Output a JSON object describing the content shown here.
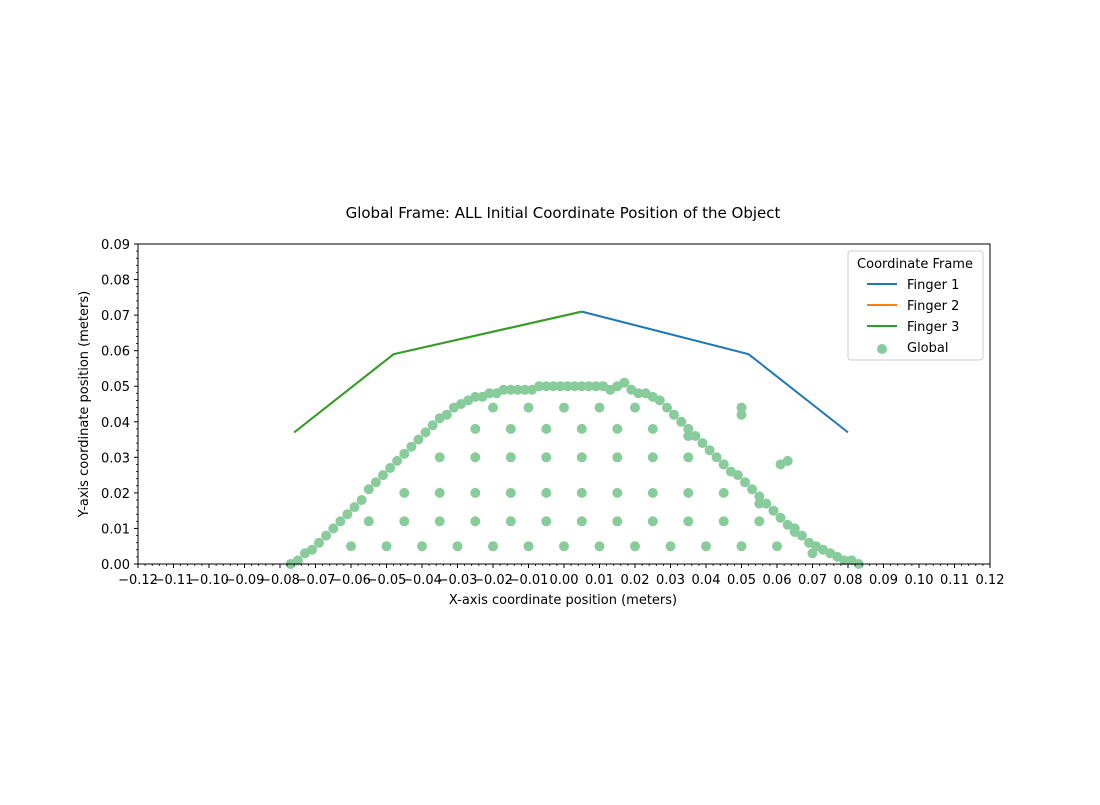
{
  "chart_data": {
    "type": "scatter",
    "title": "Global Frame: ALL Initial Coordinate Position of the Object",
    "xlabel": "X-axis coordinate position (meters)",
    "ylabel": "Y-axis coordinate position (meters)",
    "xlim": [
      -0.12,
      0.12
    ],
    "ylim": [
      0.0,
      0.09
    ],
    "grid": false,
    "legend": {
      "title": "Coordinate Frame",
      "placement": "top-right"
    },
    "x_ticks": [
      "−0.12",
      "−0.11",
      "−0.10",
      "−0.09",
      "−0.08",
      "−0.07",
      "−0.06",
      "−0.05",
      "−0.04",
      "−0.03",
      "−0.02",
      "−0.01",
      "0.00",
      "0.01",
      "0.02",
      "0.03",
      "0.04",
      "0.05",
      "0.06",
      "0.07",
      "0.08",
      "0.09",
      "0.10",
      "0.11",
      "0.12"
    ],
    "y_ticks": [
      "0.00",
      "0.01",
      "0.02",
      "0.03",
      "0.04",
      "0.05",
      "0.06",
      "0.07",
      "0.08",
      "0.09"
    ],
    "series": [
      {
        "name": "Finger 1",
        "kind": "line",
        "color": "#1f77b4",
        "x": [
          0.005,
          0.052,
          0.08
        ],
        "y": [
          0.071,
          0.059,
          0.037
        ]
      },
      {
        "name": "Finger 2",
        "kind": "line",
        "color": "#ff7f0e",
        "x": [
          -0.076,
          -0.048,
          0.005
        ],
        "y": [
          0.037,
          0.059,
          0.071
        ]
      },
      {
        "name": "Finger 3",
        "kind": "line",
        "color": "#2ca02c",
        "x": [
          -0.076,
          -0.048,
          0.005
        ],
        "y": [
          0.037,
          0.059,
          0.071
        ]
      },
      {
        "name": "Global",
        "kind": "scatter",
        "color": "#88cc9c",
        "x": [
          -0.077,
          -0.075,
          -0.073,
          -0.071,
          -0.069,
          -0.067,
          -0.065,
          -0.063,
          -0.061,
          -0.059,
          -0.057,
          -0.055,
          -0.053,
          -0.051,
          -0.049,
          -0.047,
          -0.045,
          -0.043,
          -0.041,
          -0.039,
          -0.037,
          -0.035,
          -0.033,
          -0.031,
          -0.029,
          -0.027,
          -0.025,
          -0.023,
          -0.021,
          -0.019,
          -0.017,
          -0.015,
          -0.013,
          -0.011,
          -0.009,
          -0.007,
          -0.005,
          -0.003,
          -0.001,
          0.001,
          0.003,
          0.005,
          0.007,
          0.009,
          0.011,
          0.013,
          0.015,
          0.017,
          0.019,
          0.021,
          0.023,
          0.025,
          0.027,
          0.029,
          0.031,
          0.033,
          0.035,
          0.037,
          0.039,
          0.041,
          0.043,
          0.045,
          0.047,
          0.049,
          0.051,
          0.053,
          0.055,
          0.057,
          0.059,
          0.061,
          0.063,
          0.065,
          0.067,
          0.069,
          0.071,
          0.073,
          0.075,
          0.077,
          0.079,
          0.081,
          0.083,
          -0.06,
          -0.05,
          -0.04,
          -0.03,
          -0.02,
          -0.01,
          0.0,
          0.01,
          0.02,
          0.03,
          0.04,
          0.05,
          0.06,
          0.07,
          -0.055,
          -0.045,
          -0.035,
          -0.025,
          -0.015,
          -0.005,
          0.005,
          0.015,
          0.025,
          0.035,
          0.045,
          0.055,
          0.065,
          -0.045,
          -0.035,
          -0.025,
          -0.015,
          -0.005,
          0.005,
          0.015,
          0.025,
          0.035,
          0.045,
          0.055,
          -0.035,
          -0.025,
          -0.015,
          -0.005,
          0.005,
          0.015,
          0.025,
          0.035,
          0.045,
          -0.025,
          -0.015,
          -0.005,
          0.005,
          0.015,
          0.025,
          0.035,
          -0.02,
          -0.01,
          0.0,
          0.01,
          0.02,
          0.05,
          0.05,
          0.061,
          0.063
        ],
        "y": [
          0.0,
          0.001,
          0.003,
          0.004,
          0.006,
          0.008,
          0.01,
          0.012,
          0.014,
          0.016,
          0.018,
          0.021,
          0.023,
          0.025,
          0.027,
          0.029,
          0.031,
          0.033,
          0.035,
          0.037,
          0.039,
          0.041,
          0.042,
          0.044,
          0.045,
          0.046,
          0.047,
          0.047,
          0.048,
          0.048,
          0.049,
          0.049,
          0.049,
          0.049,
          0.049,
          0.05,
          0.05,
          0.05,
          0.05,
          0.05,
          0.05,
          0.05,
          0.05,
          0.05,
          0.05,
          0.049,
          0.05,
          0.051,
          0.049,
          0.048,
          0.048,
          0.047,
          0.046,
          0.044,
          0.042,
          0.04,
          0.038,
          0.036,
          0.034,
          0.032,
          0.03,
          0.028,
          0.026,
          0.025,
          0.023,
          0.021,
          0.019,
          0.017,
          0.015,
          0.013,
          0.011,
          0.009,
          0.008,
          0.006,
          0.005,
          0.004,
          0.003,
          0.002,
          0.001,
          0.001,
          0.0,
          0.005,
          0.005,
          0.005,
          0.005,
          0.005,
          0.005,
          0.005,
          0.005,
          0.005,
          0.005,
          0.005,
          0.005,
          0.005,
          0.003,
          0.012,
          0.012,
          0.012,
          0.012,
          0.012,
          0.012,
          0.012,
          0.012,
          0.012,
          0.012,
          0.012,
          0.012,
          0.01,
          0.02,
          0.02,
          0.02,
          0.02,
          0.02,
          0.02,
          0.02,
          0.02,
          0.02,
          0.02,
          0.017,
          0.03,
          0.03,
          0.03,
          0.03,
          0.03,
          0.03,
          0.03,
          0.03,
          0.028,
          0.038,
          0.038,
          0.038,
          0.038,
          0.038,
          0.038,
          0.036,
          0.044,
          0.044,
          0.044,
          0.044,
          0.044,
          0.044,
          0.042,
          0.028,
          0.029
        ]
      }
    ]
  }
}
